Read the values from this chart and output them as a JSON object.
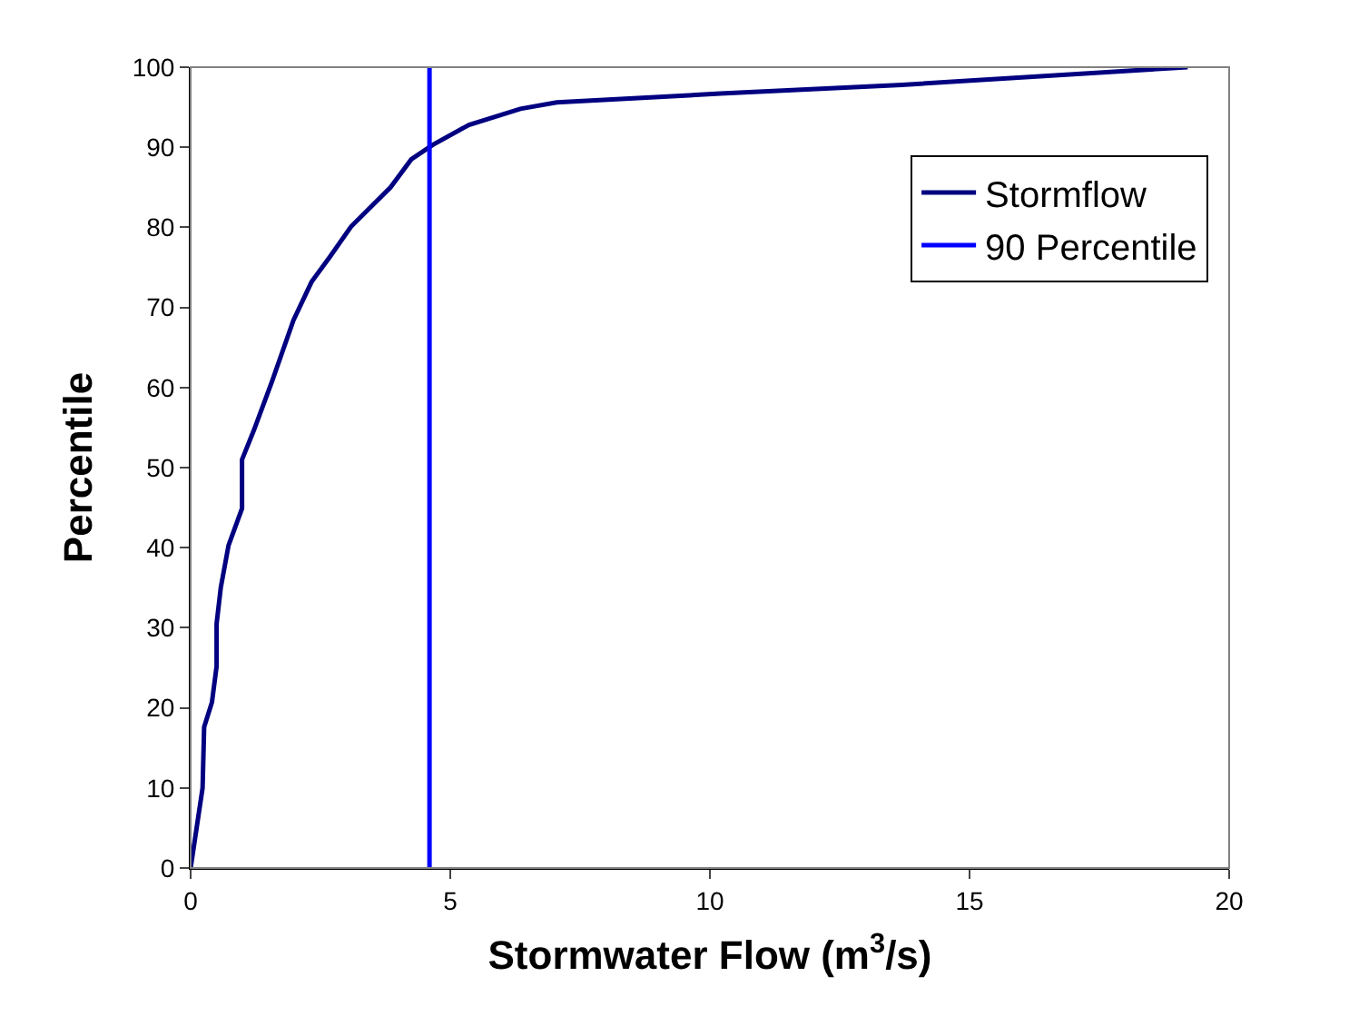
{
  "chart_data": {
    "type": "line",
    "xlabel": "Stormwater Flow (m$^{3}$/s)",
    "ylabel": "Percentile",
    "xlim": [
      0,
      20
    ],
    "xticks": [
      0,
      5,
      10,
      15,
      20
    ],
    "ylim": [
      0,
      100
    ],
    "yticks": [
      0,
      10,
      20,
      30,
      40,
      50,
      60,
      70,
      80,
      90,
      100
    ],
    "legend": "top right",
    "marker": "none",
    "line_style": "solid",
    "series": [
      {
        "name": "Stormflow",
        "color": "#000080",
        "x": [
          0,
          0.23,
          0.26,
          0.41,
          0.5,
          0.5,
          0.58,
          0.73,
          0.99,
          0.99,
          1.22,
          1.57,
          1.98,
          2.33,
          2.68,
          3.09,
          3.85,
          4.25,
          4.66,
          5.36,
          6.35,
          7.05,
          10.2,
          13.7,
          19.2
        ],
        "values": [
          0,
          10,
          17.6,
          20.7,
          25.2,
          30.5,
          35,
          40.3,
          44.9,
          51,
          54.7,
          60.8,
          68.4,
          73.2,
          76.3,
          80.1,
          85,
          88.5,
          90.3,
          92.8,
          94.8,
          95.6,
          96.7,
          97.8,
          100
        ]
      },
      {
        "name": "90 Percentile",
        "color": "#0000ff",
        "x": [
          4.6,
          4.6
        ],
        "values": [
          0,
          100
        ]
      }
    ]
  }
}
